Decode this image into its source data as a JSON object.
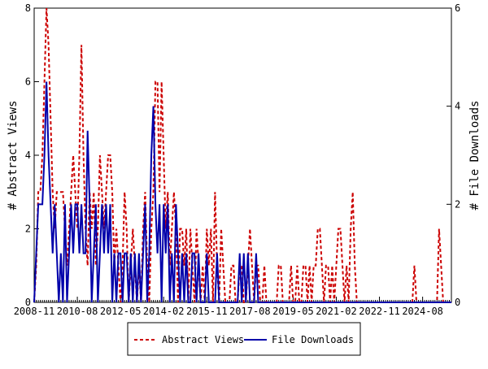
{
  "chart_data": {
    "type": "line",
    "y_label": "# Abstract Views",
    "y2_label": "# File Downloads",
    "categories": [
      "2008-11",
      null,
      null,
      null,
      null,
      null,
      null,
      null,
      null,
      null,
      null,
      null,
      null,
      null,
      null,
      null,
      null,
      null,
      null,
      null,
      null,
      "2010-08",
      null,
      null,
      null,
      null,
      null,
      null,
      null,
      null,
      null,
      null,
      null,
      null,
      null,
      null,
      null,
      null,
      null,
      null,
      null,
      null,
      "2012-05",
      null,
      null,
      null,
      null,
      null,
      null,
      null,
      null,
      null,
      null,
      null,
      null,
      null,
      null,
      null,
      null,
      null,
      null,
      null,
      null,
      "2014-02",
      null,
      null,
      null,
      null,
      null,
      null,
      null,
      null,
      null,
      null,
      null,
      null,
      null,
      null,
      null,
      null,
      null,
      null,
      null,
      null,
      "2015-11",
      null,
      null,
      null,
      null,
      null,
      null,
      null,
      null,
      null,
      null,
      null,
      null,
      null,
      null,
      null,
      null,
      null,
      null,
      null,
      null,
      "2017-08",
      null,
      null,
      null,
      null,
      null,
      null,
      null,
      null,
      null,
      null,
      null,
      null,
      null,
      null,
      null,
      null,
      null,
      null,
      null,
      null,
      "2019-05",
      null,
      null,
      null,
      null,
      null,
      null,
      null,
      null,
      null,
      null,
      null,
      null,
      null,
      null,
      null,
      null,
      null,
      null,
      null,
      null,
      "2021-02",
      null,
      null,
      null,
      null,
      null,
      null,
      null,
      null,
      null,
      null,
      null,
      null,
      null,
      null,
      null,
      null,
      null,
      null,
      null,
      null,
      "2022-11",
      null,
      null,
      null,
      null,
      null,
      null,
      null,
      null,
      null,
      null,
      null,
      null,
      null,
      null,
      null,
      null,
      null,
      null,
      null,
      null,
      "2024-08",
      null,
      null,
      null,
      null,
      null,
      null,
      null,
      null,
      null,
      null,
      null,
      null,
      null,
      null
    ],
    "series": [
      {
        "name": "Abstract Views",
        "color": "#cc0000",
        "dash": true,
        "axis": "y",
        "values": [
          0,
          1,
          3,
          3,
          4,
          6,
          8,
          7,
          5,
          3,
          2,
          3,
          3,
          3,
          3,
          2,
          1,
          2,
          3,
          4,
          3,
          2,
          4,
          7,
          4,
          2,
          1,
          3,
          2,
          3,
          1,
          2,
          4,
          3,
          2,
          3,
          4,
          4,
          3,
          1,
          2,
          1,
          0,
          1,
          3,
          2,
          0,
          1,
          2,
          1,
          0,
          1,
          0,
          2,
          3,
          1,
          0,
          2,
          3,
          6,
          6,
          3,
          6,
          4,
          2,
          3,
          1,
          2,
          3,
          2,
          0,
          2,
          2,
          1,
          2,
          0,
          2,
          1,
          0,
          2,
          1,
          0,
          1,
          0,
          2,
          1,
          2,
          0,
          3,
          1,
          0,
          2,
          1,
          0,
          0,
          0,
          1,
          1,
          0,
          0,
          1,
          1,
          0,
          0,
          1,
          2,
          1,
          0,
          1,
          1,
          0,
          0,
          1,
          0,
          0,
          0,
          0,
          0,
          0,
          1,
          1,
          0,
          0,
          0,
          0,
          1,
          0,
          0,
          1,
          0,
          0,
          1,
          1,
          0,
          1,
          0,
          1,
          1,
          2,
          2,
          1,
          0,
          1,
          1,
          0,
          1,
          0,
          1,
          2,
          2,
          1,
          0,
          1,
          0,
          2,
          3,
          1,
          0,
          0,
          0,
          0,
          0,
          0,
          0,
          0,
          0,
          0,
          0,
          0,
          0,
          0,
          0,
          0,
          0,
          0,
          0,
          0,
          0,
          0,
          0,
          0,
          0,
          0,
          0,
          0,
          1,
          0,
          0,
          0,
          0,
          0,
          0,
          0,
          0,
          0,
          0,
          0,
          2,
          1,
          0,
          0,
          0,
          0,
          0
        ]
      },
      {
        "name": "File Downloads",
        "color": "#0000aa",
        "dash": false,
        "axis": "y2",
        "values": [
          0,
          1,
          2,
          2,
          2,
          3,
          4.5,
          3,
          2,
          1,
          2,
          1,
          0,
          1,
          0,
          2,
          0,
          1,
          2,
          1,
          2,
          2,
          1,
          2,
          1,
          1,
          3.5,
          2,
          0,
          1,
          2,
          0,
          1,
          2,
          1,
          2,
          1,
          2,
          0,
          1,
          0,
          1,
          1,
          0,
          1,
          1,
          0,
          1,
          0,
          1,
          0,
          1,
          0,
          1,
          2,
          0,
          1,
          3,
          4,
          2,
          1,
          2,
          0,
          2,
          1,
          2,
          0,
          1,
          0,
          2,
          1,
          0,
          1,
          0,
          1,
          0,
          0,
          1,
          1,
          0,
          1,
          0,
          0,
          0,
          1,
          0,
          0,
          0,
          0,
          1,
          0,
          0,
          0,
          0,
          0,
          0,
          0,
          0,
          0,
          0,
          1,
          0,
          1,
          0,
          1,
          0,
          0,
          0,
          1,
          0,
          0,
          0,
          0,
          0,
          0,
          0,
          0,
          0,
          0,
          0,
          0,
          0,
          0,
          0,
          0,
          0,
          0,
          0,
          0,
          0,
          0,
          0,
          0,
          0,
          0,
          0,
          0,
          0,
          0,
          0,
          0,
          0,
          0,
          0,
          0,
          0,
          0,
          0,
          0,
          0,
          0,
          0,
          0,
          0,
          0,
          0,
          0,
          0,
          0,
          0,
          0,
          0,
          0,
          0,
          0,
          0,
          0,
          0,
          0,
          0,
          0,
          0,
          0,
          0,
          0,
          0,
          0,
          0,
          0,
          0,
          0,
          0,
          0,
          0,
          0,
          0,
          0,
          0,
          0,
          0,
          0,
          0,
          0,
          0,
          0,
          0,
          0,
          0,
          0,
          0,
          0,
          0,
          0,
          0
        ]
      }
    ],
    "ylim": [
      0,
      8
    ],
    "yticks": [
      0,
      2,
      4,
      6,
      8
    ],
    "y2lim": [
      0,
      6
    ],
    "y2ticks": [
      0,
      2,
      4,
      6
    ],
    "legend": "bottom"
  }
}
